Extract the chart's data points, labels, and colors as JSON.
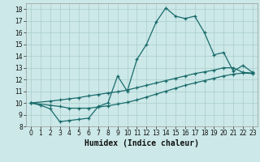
{
  "title": "",
  "xlabel": "Humidex (Indice chaleur)",
  "background_color": "#cce8e8",
  "grid_color": "#aacccc",
  "line_color": "#1a6b6b",
  "ylim": [
    8,
    18.5
  ],
  "xlim": [
    -0.5,
    23.5
  ],
  "yticks": [
    8,
    9,
    10,
    11,
    12,
    13,
    14,
    15,
    16,
    17,
    18
  ],
  "xticks": [
    0,
    1,
    2,
    3,
    4,
    5,
    6,
    7,
    8,
    9,
    10,
    11,
    12,
    13,
    14,
    15,
    16,
    17,
    18,
    19,
    20,
    21,
    22,
    23
  ],
  "line1_x": [
    0,
    1,
    2,
    3,
    4,
    5,
    6,
    7,
    8,
    9,
    10,
    11,
    12,
    13,
    14,
    15,
    16,
    17,
    18,
    19,
    20,
    21,
    22,
    23
  ],
  "line1_y": [
    10.0,
    9.8,
    9.5,
    8.4,
    8.5,
    8.6,
    8.7,
    9.7,
    10.0,
    12.3,
    11.0,
    13.7,
    15.0,
    16.9,
    18.1,
    17.4,
    17.2,
    17.4,
    16.0,
    14.1,
    14.3,
    12.7,
    13.2,
    12.6
  ],
  "line2_x": [
    0,
    2,
    3,
    4,
    5,
    6,
    7,
    8,
    9,
    10,
    11,
    12,
    13,
    14,
    15,
    16,
    17,
    18,
    19,
    20,
    21,
    22,
    23
  ],
  "line2_y": [
    10.0,
    10.15,
    10.25,
    10.35,
    10.45,
    10.6,
    10.72,
    10.85,
    10.95,
    11.1,
    11.3,
    11.5,
    11.7,
    11.9,
    12.1,
    12.3,
    12.5,
    12.65,
    12.8,
    13.0,
    13.0,
    12.6,
    12.55
  ],
  "line3_x": [
    0,
    2,
    3,
    4,
    5,
    6,
    7,
    8,
    9,
    10,
    11,
    12,
    13,
    14,
    15,
    16,
    17,
    18,
    19,
    20,
    21,
    22,
    23
  ],
  "line3_y": [
    10.0,
    9.8,
    9.7,
    9.55,
    9.55,
    9.55,
    9.65,
    9.75,
    9.9,
    10.05,
    10.25,
    10.5,
    10.75,
    11.0,
    11.25,
    11.5,
    11.7,
    11.9,
    12.1,
    12.3,
    12.45,
    12.55,
    12.5
  ]
}
